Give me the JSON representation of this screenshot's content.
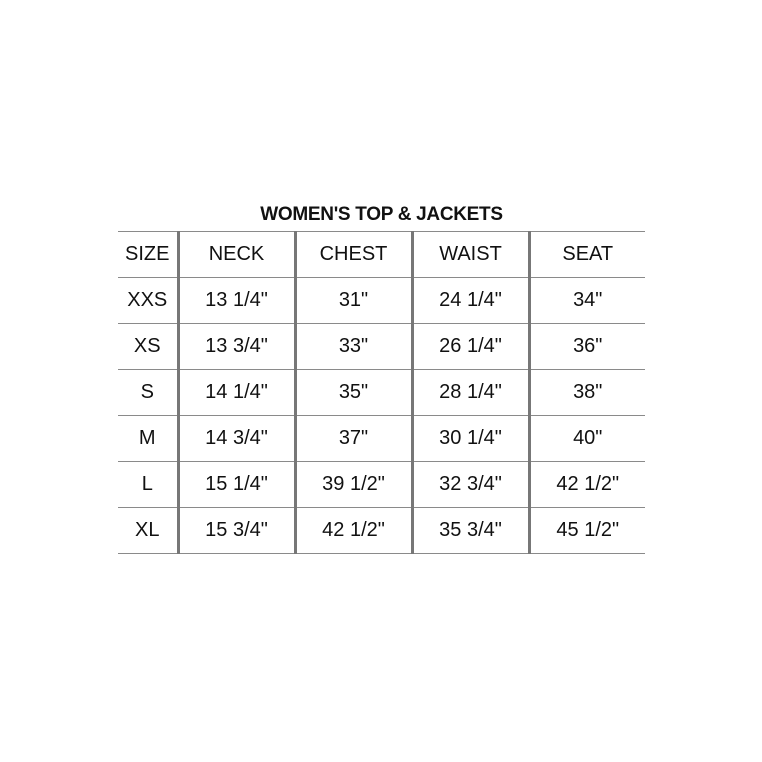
{
  "title": "WOMEN'S TOP & JACKETS",
  "headers": [
    "SIZE",
    "NECK",
    "CHEST",
    "WAIST",
    "SEAT"
  ],
  "rows": [
    [
      "XXS",
      "13 1/4\"",
      "31\"",
      "24 1/4\"",
      "34\""
    ],
    [
      "XS",
      "13 3/4\"",
      "33\"",
      "26 1/4\"",
      "36\""
    ],
    [
      "S",
      "14 1/4\"",
      "35\"",
      "28 1/4\"",
      "38\""
    ],
    [
      "M",
      "14 3/4\"",
      "37\"",
      "30 1/4\"",
      "40\""
    ],
    [
      "L",
      "15 1/4\"",
      "39 1/2\"",
      "32 3/4\"",
      "42 1/2\""
    ],
    [
      "XL",
      "15 3/4\"",
      "42 1/2\"",
      "35 3/4\"",
      "45 1/2\""
    ]
  ]
}
